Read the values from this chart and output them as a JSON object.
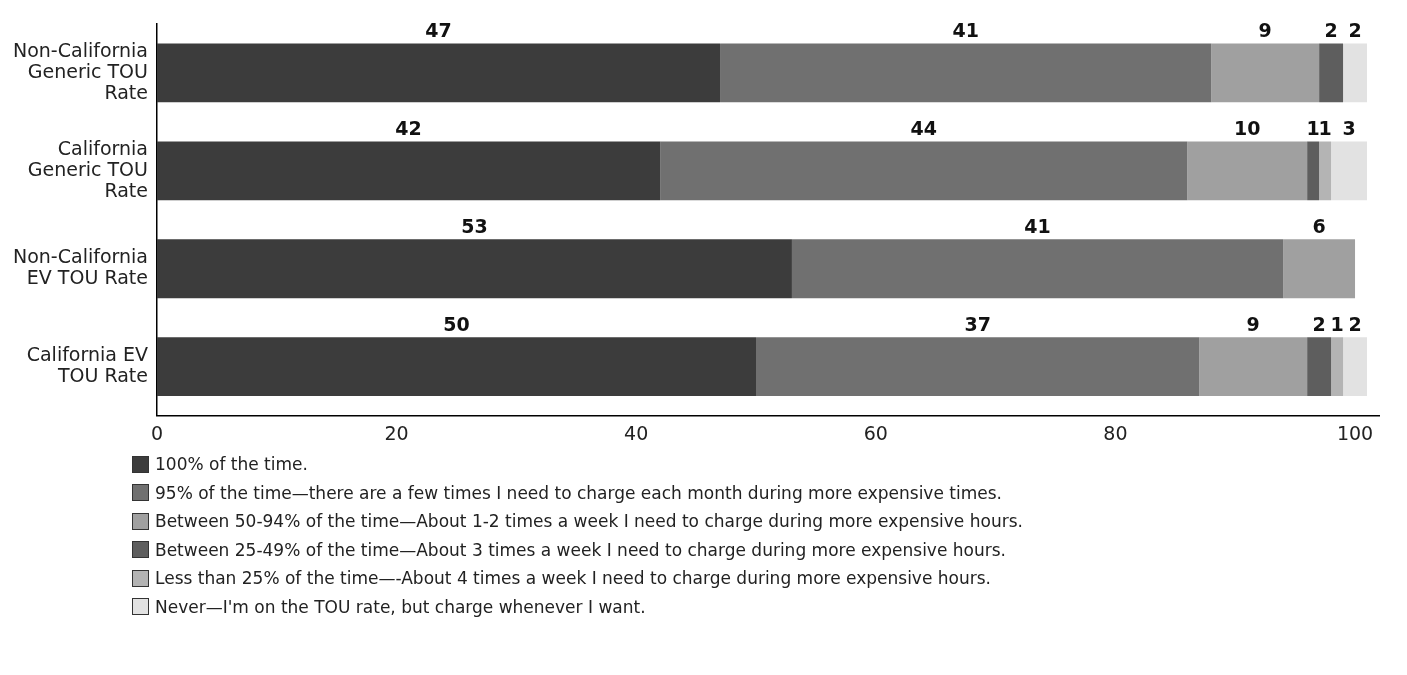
{
  "chart_data": {
    "type": "bar",
    "orientation": "horizontal",
    "stacked": true,
    "categories": [
      "Non-California Generic TOU Rate",
      "California Generic TOU Rate",
      "Non-California EV TOU Rate",
      "California EV TOU Rate"
    ],
    "series": [
      {
        "name": "100% of the time.",
        "color": "#3c3c3c",
        "values": [
          47,
          42,
          53,
          50
        ]
      },
      {
        "name": "95% of the time—there are a few times I need to charge each month during more expensive times.",
        "color": "#707070",
        "values": [
          41,
          44,
          41,
          37
        ]
      },
      {
        "name": "Between 50-94% of the time—About 1-2 times a week I need to charge during more expensive hours.",
        "color": "#a0a0a0",
        "values": [
          9,
          10,
          6,
          9
        ]
      },
      {
        "name": "Between 25-49% of the time—About 3 times a week I need to charge during more expensive hours.",
        "color": "#5e5e5e",
        "values": [
          2,
          1,
          null,
          2
        ]
      },
      {
        "name": "Less than 25% of the time—-About 4 times a week I need to charge during more expensive hours.",
        "color": "#b4b4b4",
        "values": [
          null,
          1,
          null,
          1
        ]
      },
      {
        "name": "Never—I'm on the TOU rate, but charge whenever I want.",
        "color": "#e2e2e2",
        "values": [
          2,
          3,
          null,
          2
        ]
      }
    ],
    "xlim": [
      0,
      102
    ],
    "xticks": [
      0,
      20,
      40,
      60,
      80,
      100
    ],
    "grid": false,
    "legend": "bottom",
    "data_labels": true
  }
}
